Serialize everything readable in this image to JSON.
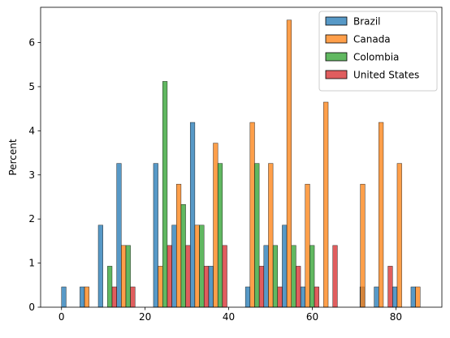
{
  "chart_data": {
    "type": "bar",
    "subtype": "grouped histogram (dodged bins)",
    "xlabel": "",
    "ylabel": "Percent",
    "xlim": [
      -5,
      91
    ],
    "ylim": [
      0,
      6.8
    ],
    "xticks": [
      0,
      20,
      40,
      60,
      80
    ],
    "yticks": [
      0,
      1,
      2,
      3,
      4,
      5,
      6
    ],
    "grid": false,
    "legend_position": "top-right",
    "bin_width": 4.4,
    "series": [
      {
        "name": "Brazil",
        "color": "#1f77b4",
        "points": [
          {
            "x": 0.55,
            "y": 0.46
          },
          {
            "x": 4.95,
            "y": 0.46
          },
          {
            "x": 9.35,
            "y": 1.86
          },
          {
            "x": 13.75,
            "y": 3.26
          },
          {
            "x": 22.55,
            "y": 3.26
          },
          {
            "x": 26.95,
            "y": 1.86
          },
          {
            "x": 31.35,
            "y": 4.19
          },
          {
            "x": 35.75,
            "y": 0.93
          },
          {
            "x": 44.55,
            "y": 0.46
          },
          {
            "x": 48.95,
            "y": 1.4
          },
          {
            "x": 53.35,
            "y": 1.86
          },
          {
            "x": 57.75,
            "y": 0.46
          },
          {
            "x": 71.95,
            "y": 0.46
          },
          {
            "x": 75.35,
            "y": 0.46
          },
          {
            "x": 79.75,
            "y": 0.46
          },
          {
            "x": 84.15,
            "y": 0.46
          }
        ]
      },
      {
        "name": "Canada",
        "color": "#ff7f0e",
        "points": [
          {
            "x": 6.05,
            "y": 0.46
          },
          {
            "x": 14.85,
            "y": 1.4
          },
          {
            "x": 23.65,
            "y": 0.93
          },
          {
            "x": 28.05,
            "y": 2.79
          },
          {
            "x": 32.45,
            "y": 1.86
          },
          {
            "x": 36.85,
            "y": 3.72
          },
          {
            "x": 45.65,
            "y": 4.19
          },
          {
            "x": 50.05,
            "y": 3.26
          },
          {
            "x": 54.45,
            "y": 6.51
          },
          {
            "x": 58.85,
            "y": 2.79
          },
          {
            "x": 63.25,
            "y": 4.65
          },
          {
            "x": 72.05,
            "y": 2.79
          },
          {
            "x": 76.45,
            "y": 4.19
          },
          {
            "x": 80.85,
            "y": 3.26
          },
          {
            "x": 85.25,
            "y": 0.46
          }
        ]
      },
      {
        "name": "Colombia",
        "color": "#2ca02c",
        "points": [
          {
            "x": 11.55,
            "y": 0.93
          },
          {
            "x": 15.95,
            "y": 1.4
          },
          {
            "x": 24.75,
            "y": 5.12
          },
          {
            "x": 29.15,
            "y": 2.33
          },
          {
            "x": 33.55,
            "y": 1.86
          },
          {
            "x": 37.95,
            "y": 3.26
          },
          {
            "x": 46.75,
            "y": 3.26
          },
          {
            "x": 51.15,
            "y": 1.4
          },
          {
            "x": 55.55,
            "y": 1.4
          },
          {
            "x": 59.95,
            "y": 1.4
          }
        ]
      },
      {
        "name": "United States",
        "color": "#d62728",
        "points": [
          {
            "x": 12.65,
            "y": 0.46
          },
          {
            "x": 17.05,
            "y": 0.46
          },
          {
            "x": 25.85,
            "y": 1.4
          },
          {
            "x": 30.25,
            "y": 1.4
          },
          {
            "x": 34.65,
            "y": 0.93
          },
          {
            "x": 39.05,
            "y": 1.4
          },
          {
            "x": 47.85,
            "y": 0.93
          },
          {
            "x": 52.25,
            "y": 0.46
          },
          {
            "x": 56.65,
            "y": 0.93
          },
          {
            "x": 61.05,
            "y": 0.46
          },
          {
            "x": 65.45,
            "y": 1.4
          },
          {
            "x": 78.65,
            "y": 0.93
          }
        ]
      }
    ]
  }
}
